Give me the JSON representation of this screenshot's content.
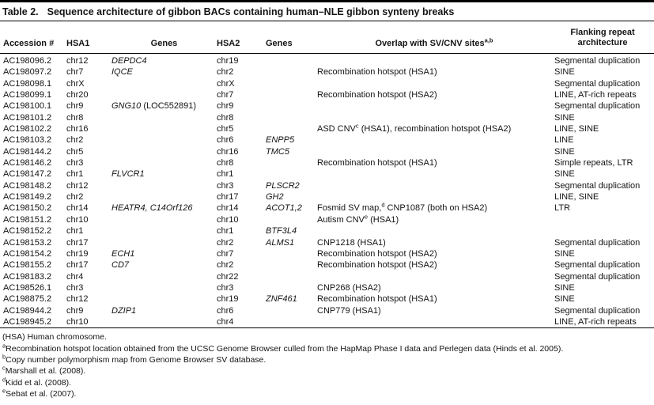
{
  "title": {
    "label": "Table 2.",
    "caption": "Sequence architecture of gibbon BACs containing human–NLE gibbon synteny breaks"
  },
  "header": {
    "accession": "Accession #",
    "hsa1": "HSA1",
    "genes1": "Genes",
    "hsa2": "HSA2",
    "genes2": "Genes",
    "overlap": {
      "pre": "Overlap with SV/CNV sites",
      "sup": "a,b"
    },
    "flanking": "Flanking repeat architecture"
  },
  "rows": [
    {
      "acc": "AC198096.2",
      "hsa1": "chr12",
      "g1": {
        "italic": "DEPDC4",
        "roman": ""
      },
      "hsa2": "chr19",
      "g2": {
        "italic": ""
      },
      "overlap": {
        "pre": "",
        "sup": "",
        "post": ""
      },
      "flank": "Segmental duplication"
    },
    {
      "acc": "AC198097.2",
      "hsa1": "chr7",
      "g1": {
        "italic": "IQCE",
        "roman": ""
      },
      "hsa2": "chr2",
      "g2": {
        "italic": ""
      },
      "overlap": {
        "pre": "Recombination hotspot (HSA1)",
        "sup": "",
        "post": ""
      },
      "flank": "SINE"
    },
    {
      "acc": "AC198098.1",
      "hsa1": "chrX",
      "g1": {
        "italic": "",
        "roman": ""
      },
      "hsa2": "chrX",
      "g2": {
        "italic": ""
      },
      "overlap": {
        "pre": "",
        "sup": "",
        "post": ""
      },
      "flank": "Segmental duplication"
    },
    {
      "acc": "AC198099.1",
      "hsa1": "chr20",
      "g1": {
        "italic": "",
        "roman": ""
      },
      "hsa2": "chr7",
      "g2": {
        "italic": ""
      },
      "overlap": {
        "pre": "Recombination hotspot (HSA2)",
        "sup": "",
        "post": ""
      },
      "flank": "LINE, AT-rich repeats"
    },
    {
      "acc": "AC198100.1",
      "hsa1": "chr9",
      "g1": {
        "italic": "GNG10",
        "roman": " (LOC552891)"
      },
      "hsa2": "chr9",
      "g2": {
        "italic": ""
      },
      "overlap": {
        "pre": "",
        "sup": "",
        "post": ""
      },
      "flank": "Segmental duplication"
    },
    {
      "acc": "AC198101.2",
      "hsa1": "chr8",
      "g1": {
        "italic": "",
        "roman": ""
      },
      "hsa2": "chr8",
      "g2": {
        "italic": ""
      },
      "overlap": {
        "pre": "",
        "sup": "",
        "post": ""
      },
      "flank": "SINE"
    },
    {
      "acc": "AC198102.2",
      "hsa1": "chr16",
      "g1": {
        "italic": "",
        "roman": ""
      },
      "hsa2": "chr5",
      "g2": {
        "italic": ""
      },
      "overlap": {
        "pre": "ASD CNV",
        "sup": "c",
        "post": " (HSA1), recombination hotspot (HSA2)"
      },
      "flank": "LINE, SINE"
    },
    {
      "acc": "AC198103.2",
      "hsa1": "chr2",
      "g1": {
        "italic": "",
        "roman": ""
      },
      "hsa2": "chr6",
      "g2": {
        "italic": "ENPP5"
      },
      "overlap": {
        "pre": "",
        "sup": "",
        "post": ""
      },
      "flank": "LINE"
    },
    {
      "acc": "AC198144.2",
      "hsa1": "chr5",
      "g1": {
        "italic": "",
        "roman": ""
      },
      "hsa2": "chr16",
      "g2": {
        "italic": "TMC5"
      },
      "overlap": {
        "pre": "",
        "sup": "",
        "post": ""
      },
      "flank": "SINE"
    },
    {
      "acc": "AC198146.2",
      "hsa1": "chr3",
      "g1": {
        "italic": "",
        "roman": ""
      },
      "hsa2": "chr8",
      "g2": {
        "italic": ""
      },
      "overlap": {
        "pre": "Recombination hotspot (HSA1)",
        "sup": "",
        "post": ""
      },
      "flank": "Simple repeats, LTR"
    },
    {
      "acc": "AC198147.2",
      "hsa1": "chr1",
      "g1": {
        "italic": "FLVCR1",
        "roman": ""
      },
      "hsa2": "chr1",
      "g2": {
        "italic": ""
      },
      "overlap": {
        "pre": "",
        "sup": "",
        "post": ""
      },
      "flank": "SINE"
    },
    {
      "acc": "AC198148.2",
      "hsa1": "chr12",
      "g1": {
        "italic": "",
        "roman": ""
      },
      "hsa2": "chr3",
      "g2": {
        "italic": "PLSCR2"
      },
      "overlap": {
        "pre": "",
        "sup": "",
        "post": ""
      },
      "flank": "Segmental duplication"
    },
    {
      "acc": "AC198149.2",
      "hsa1": "chr2",
      "g1": {
        "italic": "",
        "roman": ""
      },
      "hsa2": "chr17",
      "g2": {
        "italic": "GH2"
      },
      "overlap": {
        "pre": "",
        "sup": "",
        "post": ""
      },
      "flank": "LINE, SINE"
    },
    {
      "acc": "AC198150.2",
      "hsa1": "chr14",
      "g1": {
        "italic": "HEATR4, C14Orf126",
        "roman": ""
      },
      "hsa2": "chr14",
      "g2": {
        "italic": "ACOT1,2"
      },
      "overlap": {
        "pre": "Fosmid SV map,",
        "sup": "d",
        "post": " CNP1087 (both on HSA2)"
      },
      "flank": "LTR"
    },
    {
      "acc": "AC198151.2",
      "hsa1": "chr10",
      "g1": {
        "italic": "",
        "roman": ""
      },
      "hsa2": "chr10",
      "g2": {
        "italic": ""
      },
      "overlap": {
        "pre": "Autism CNV",
        "sup": "e",
        "post": " (HSA1)"
      },
      "flank": ""
    },
    {
      "acc": "AC198152.2",
      "hsa1": "chr1",
      "g1": {
        "italic": "",
        "roman": ""
      },
      "hsa2": "chr1",
      "g2": {
        "italic": "BTF3L4"
      },
      "overlap": {
        "pre": "",
        "sup": "",
        "post": ""
      },
      "flank": ""
    },
    {
      "acc": "AC198153.2",
      "hsa1": "chr17",
      "g1": {
        "italic": "",
        "roman": ""
      },
      "hsa2": "chr2",
      "g2": {
        "italic": "ALMS1"
      },
      "overlap": {
        "pre": "CNP1218 (HSA1)",
        "sup": "",
        "post": ""
      },
      "flank": "Segmental duplication"
    },
    {
      "acc": "AC198154.2",
      "hsa1": "chr19",
      "g1": {
        "italic": "ECH1",
        "roman": ""
      },
      "hsa2": "chr7",
      "g2": {
        "italic": ""
      },
      "overlap": {
        "pre": "Recombination hotspot (HSA2)",
        "sup": "",
        "post": ""
      },
      "flank": "SINE"
    },
    {
      "acc": "AC198155.2",
      "hsa1": "chr17",
      "g1": {
        "italic": "CD7",
        "roman": ""
      },
      "hsa2": "chr2",
      "g2": {
        "italic": ""
      },
      "overlap": {
        "pre": "Recombination hotspot (HSA2)",
        "sup": "",
        "post": ""
      },
      "flank": "Segmental duplication"
    },
    {
      "acc": "AC198183.2",
      "hsa1": "chr4",
      "g1": {
        "italic": "",
        "roman": ""
      },
      "hsa2": "chr22",
      "g2": {
        "italic": ""
      },
      "overlap": {
        "pre": "",
        "sup": "",
        "post": ""
      },
      "flank": "Segmental duplication"
    },
    {
      "acc": "AC198526.1",
      "hsa1": "chr3",
      "g1": {
        "italic": "",
        "roman": ""
      },
      "hsa2": "chr3",
      "g2": {
        "italic": ""
      },
      "overlap": {
        "pre": "CNP268 (HSA2)",
        "sup": "",
        "post": ""
      },
      "flank": "SINE"
    },
    {
      "acc": "AC198875.2",
      "hsa1": "chr12",
      "g1": {
        "italic": "",
        "roman": ""
      },
      "hsa2": "chr19",
      "g2": {
        "italic": "ZNF461"
      },
      "overlap": {
        "pre": "Recombination hotspot (HSA1)",
        "sup": "",
        "post": ""
      },
      "flank": "SINE"
    },
    {
      "acc": "AC198944.2",
      "hsa1": "chr9",
      "g1": {
        "italic": "DZIP1",
        "roman": ""
      },
      "hsa2": "chr6",
      "g2": {
        "italic": ""
      },
      "overlap": {
        "pre": "CNP779 (HSA1)",
        "sup": "",
        "post": ""
      },
      "flank": "Segmental duplication"
    },
    {
      "acc": "AC198945.2",
      "hsa1": "chr10",
      "g1": {
        "italic": "",
        "roman": ""
      },
      "hsa2": "chr4",
      "g2": {
        "italic": ""
      },
      "overlap": {
        "pre": "",
        "sup": "",
        "post": ""
      },
      "flank": "LINE, AT-rich repeats"
    }
  ],
  "footnotes": [
    {
      "sup": "",
      "text": "(HSA) Human chromosome."
    },
    {
      "sup": "a",
      "text": "Recombination hotspot location obtained from the UCSC Genome Browser culled from the HapMap Phase I data and Perlegen data (Hinds et al. 2005)."
    },
    {
      "sup": "b",
      "text": "Copy number polymorphism map from Genome Browser SV database."
    },
    {
      "sup": "c",
      "text": "Marshall et al. (2008)."
    },
    {
      "sup": "d",
      "text": "Kidd et al. (2008)."
    },
    {
      "sup": "e",
      "text": "Sebat et al. (2007)."
    }
  ]
}
